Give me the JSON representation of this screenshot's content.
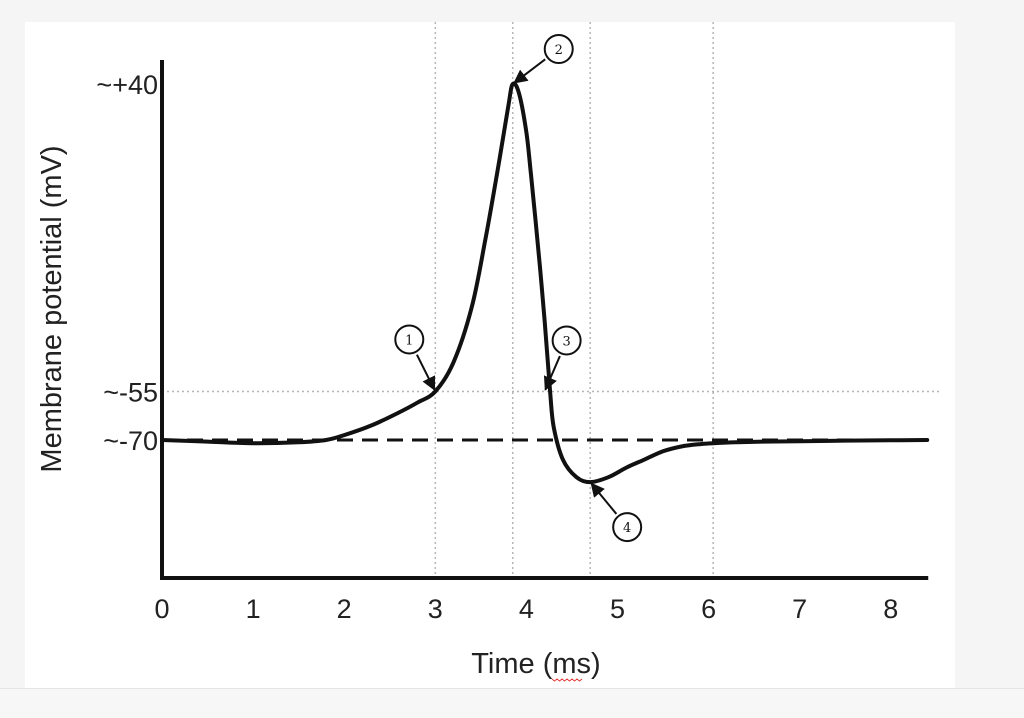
{
  "chart_data": {
    "type": "line",
    "xlabel": "Time (ms)",
    "ylabel": "Membrane potential (mV)",
    "xlim": [
      0,
      8.4
    ],
    "x_ticks": [
      0,
      1,
      2,
      3,
      4,
      5,
      6,
      7,
      8
    ],
    "y_ticks": [
      {
        "value": 40,
        "label": "~+40"
      },
      {
        "value": -55,
        "label": "~-55"
      },
      {
        "value": -70,
        "label": "~-70"
      }
    ],
    "vertical_guides": [
      3.0,
      3.85,
      4.7,
      6.05
    ],
    "threshold_guide": -55,
    "resting_line": -70,
    "series": [
      {
        "x": [
          0,
          0.5,
          1,
          1.5,
          1.8,
          2,
          2.3,
          2.6,
          2.8,
          3.0,
          3.2,
          3.4,
          3.55,
          3.7,
          3.8,
          3.85,
          3.92,
          4.0,
          4.05,
          4.1,
          4.15,
          4.2,
          4.26,
          4.3,
          4.4,
          4.55,
          4.7,
          4.9,
          5.1,
          5.3,
          5.5,
          5.7,
          5.9,
          6.05,
          6.3,
          6.6,
          7,
          7.5,
          8,
          8.4
        ],
        "y": [
          -70,
          -70.5,
          -71,
          -70.7,
          -70,
          -68.5,
          -65.5,
          -61.5,
          -58.5,
          -55,
          -46,
          -29,
          -8,
          16,
          33,
          40,
          37,
          25,
          12,
          -2,
          -17,
          -33,
          -55,
          -66,
          -76,
          -81.5,
          -83,
          -81.5,
          -78.5,
          -76,
          -73.5,
          -72,
          -71.3,
          -71,
          -70.7,
          -70.5,
          -70.4,
          -70.2,
          -70.1,
          -70
        ]
      }
    ],
    "annotations": [
      {
        "label": "1",
        "x": 3.0,
        "y": -55
      },
      {
        "label": "2",
        "x": 3.85,
        "y": 40
      },
      {
        "label": "3",
        "x": 4.2,
        "y": -55
      },
      {
        "label": "4",
        "x": 4.7,
        "y": -83
      }
    ]
  },
  "footer": {
    "underline_color": "#e53935"
  }
}
